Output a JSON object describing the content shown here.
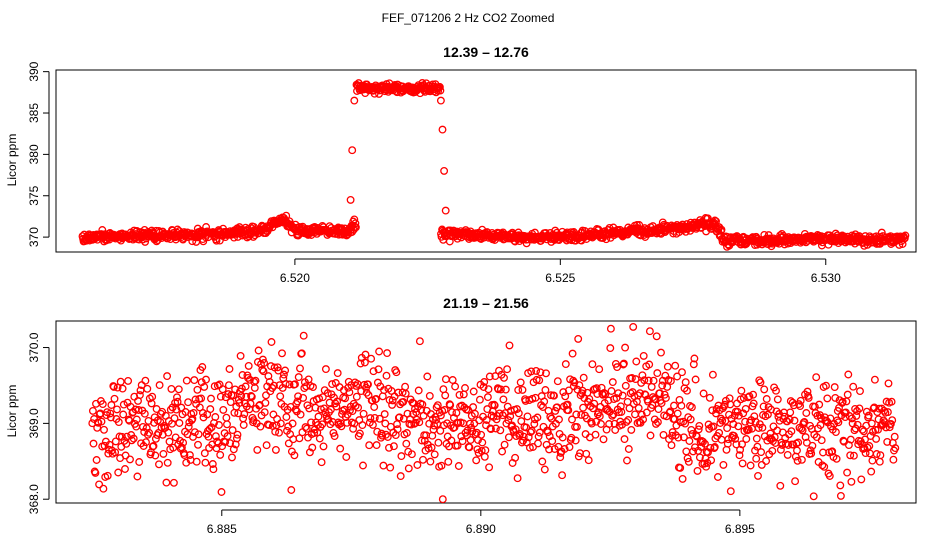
{
  "figure": {
    "title": "FEF_071206  2 Hz CO2 Zoomed"
  },
  "chart_data": [
    {
      "type": "scatter",
      "title": "12.39 – 12.76",
      "xlabel": "",
      "ylabel": "Licor ppm",
      "xlim": [
        6.5155,
        6.5317
      ],
      "ylim": [
        368.2,
        390.2
      ],
      "x_ticks": [
        6.52,
        6.525,
        6.53
      ],
      "x_tick_labels": [
        "6.520",
        "6.525",
        "6.530"
      ],
      "y_ticks": [
        370,
        375,
        380,
        385,
        390
      ],
      "y_tick_labels": [
        "370",
        "375",
        "380",
        "385",
        "390"
      ],
      "grid": false,
      "legend": "none",
      "marker": "open-circle",
      "color": "#ff0000",
      "n_points": 1500,
      "x_range": [
        6.516,
        6.5315
      ],
      "baseline_profile": [
        [
          6.516,
          370.0
        ],
        [
          6.517,
          370.2
        ],
        [
          6.518,
          370.3
        ],
        [
          6.519,
          370.5
        ],
        [
          6.5195,
          371.0
        ],
        [
          6.51975,
          372.2
        ],
        [
          6.52,
          370.8
        ],
        [
          6.521,
          370.7
        ],
        [
          6.5211,
          371.3
        ],
        [
          6.5228,
          370.4
        ],
        [
          6.524,
          370.1
        ],
        [
          6.525,
          370.0
        ],
        [
          6.526,
          370.5
        ],
        [
          6.527,
          370.9
        ],
        [
          6.5279,
          371.6
        ],
        [
          6.5281,
          369.6
        ],
        [
          6.529,
          369.6
        ],
        [
          6.53,
          369.8
        ],
        [
          6.5315,
          369.7
        ]
      ],
      "plateau": {
        "x_start": 6.52115,
        "x_end": 6.52275,
        "level": 388.0
      },
      "transition_points": [
        [
          6.52105,
          374.5
        ],
        [
          6.52108,
          380.5
        ],
        [
          6.52112,
          386.5
        ],
        [
          6.52275,
          386.5
        ],
        [
          6.52278,
          383.0
        ],
        [
          6.52281,
          378.0
        ],
        [
          6.52284,
          373.2
        ]
      ],
      "noise_sd": 0.3
    },
    {
      "type": "scatter",
      "title": "21.19 – 21.56",
      "xlabel": "",
      "ylabel": "Licor ppm",
      "xlim": [
        6.8818,
        6.8984
      ],
      "ylim": [
        367.95,
        370.35
      ],
      "x_ticks": [
        6.885,
        6.89,
        6.895
      ],
      "x_tick_labels": [
        "6.885",
        "6.890",
        "6.895"
      ],
      "y_ticks": [
        368.0,
        369.0,
        370.0
      ],
      "y_tick_labels": [
        "368.0",
        "369.0",
        "370.0"
      ],
      "grid": false,
      "legend": "none",
      "marker": "open-circle",
      "color": "#ff0000",
      "n_points": 1300,
      "x_range": [
        6.8825,
        6.898
      ],
      "baseline_profile": [
        [
          6.8825,
          369.0
        ],
        [
          6.8848,
          368.95
        ],
        [
          6.8858,
          369.45
        ],
        [
          6.8868,
          369.1
        ],
        [
          6.888,
          369.3
        ],
        [
          6.889,
          368.9
        ],
        [
          6.89,
          369.05
        ],
        [
          6.892,
          369.25
        ],
        [
          6.8935,
          369.35
        ],
        [
          6.8942,
          368.8
        ],
        [
          6.895,
          368.95
        ],
        [
          6.898,
          368.95
        ]
      ],
      "noise_sd": 0.33
    }
  ]
}
